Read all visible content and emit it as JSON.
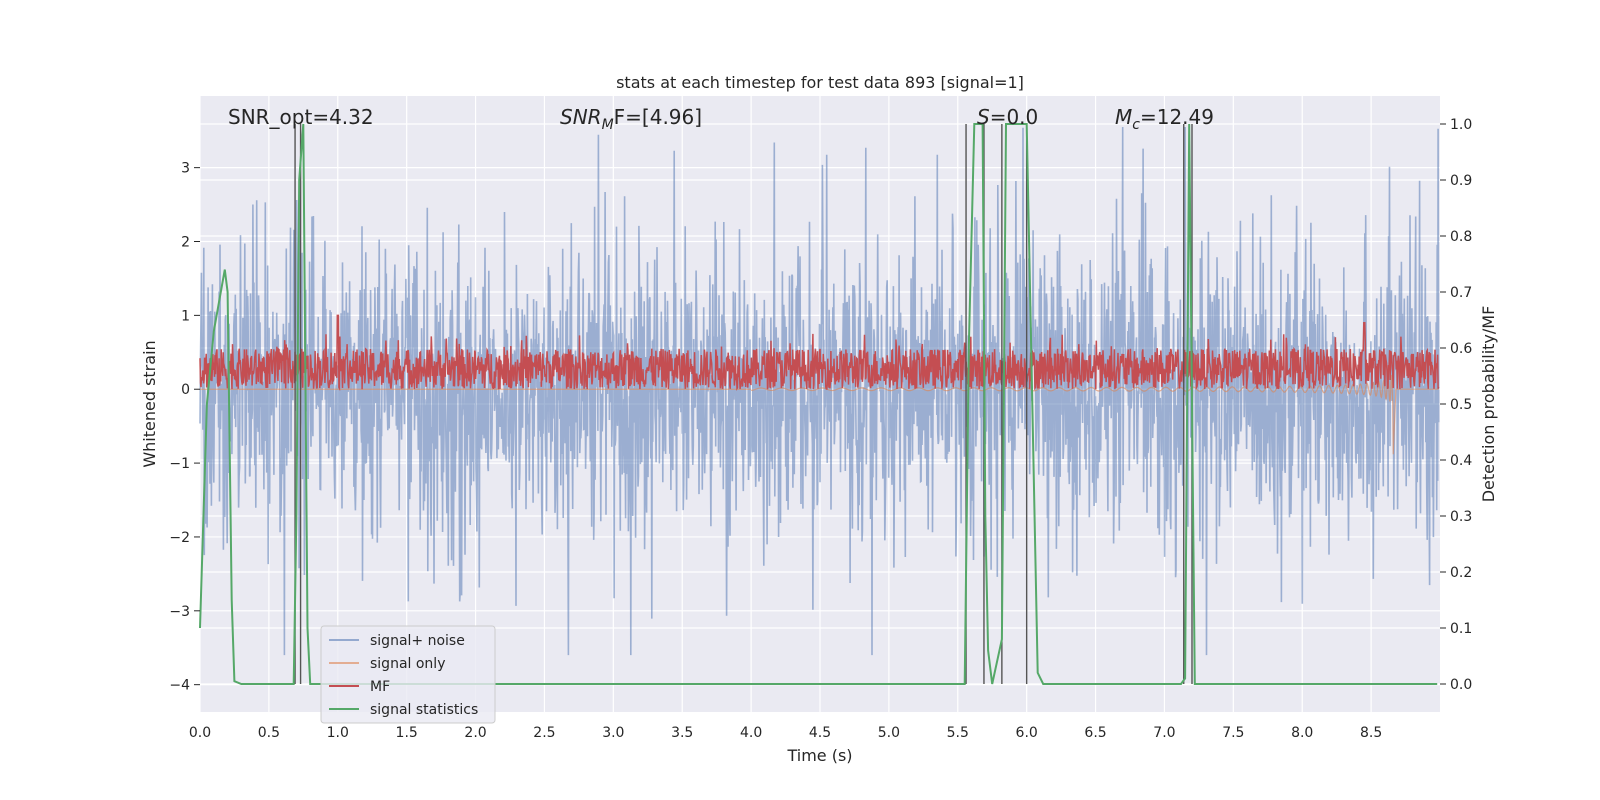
{
  "chart_data": {
    "type": "line",
    "title": "stats at each timestep for test data 893 [signal=1]",
    "xlabel": "Time (s)",
    "ylabel_left": "Whitened strain",
    "ylabel_right": "Detection probability/MF",
    "xlim": [
      0,
      9.0
    ],
    "ylim_left": [
      -4.37,
      3.97
    ],
    "ylim_right": [
      -0.05,
      1.05
    ],
    "xticks": [
      "0.0",
      "0.5",
      "1.0",
      "1.5",
      "2.0",
      "2.5",
      "3.0",
      "3.5",
      "4.0",
      "4.5",
      "5.0",
      "5.5",
      "6.0",
      "6.5",
      "7.0",
      "7.5",
      "8.0",
      "8.5"
    ],
    "xtick_values": [
      0.0,
      0.5,
      1.0,
      1.5,
      2.0,
      2.5,
      3.0,
      3.5,
      4.0,
      4.5,
      5.0,
      5.5,
      6.0,
      6.5,
      7.0,
      7.5,
      8.0,
      8.5
    ],
    "yticks_left": [
      "−4",
      "−3",
      "−2",
      "−1",
      "0",
      "1",
      "2",
      "3"
    ],
    "ytick_values_left": [
      -4,
      -3,
      -2,
      -1,
      0,
      1,
      2,
      3
    ],
    "yticks_right": [
      "0.0",
      "0.1",
      "0.2",
      "0.3",
      "0.4",
      "0.5",
      "0.6",
      "0.7",
      "0.8",
      "0.9",
      "1.0"
    ],
    "ytick_values_right": [
      0.0,
      0.1,
      0.2,
      0.3,
      0.4,
      0.5,
      0.6,
      0.7,
      0.8,
      0.9,
      1.0
    ],
    "grid": true,
    "legend_position": "bottom-left",
    "annotations": {
      "snr_opt": "SNR_opt=4.32",
      "snr_mf_sym": "SNR",
      "snr_mf_sub": "M",
      "snr_mf_rest": "F=[4.96]",
      "s_sym": "S",
      "s_rest": "=0.0",
      "mc_sym": "M",
      "mc_sub": "c",
      "mc_rest": "=12.49"
    },
    "series": [
      {
        "name": "signal+ noise",
        "color": "#4c72b0",
        "axis": "left",
        "description_values": "whitened noise, amplitude mostly within ±2, peaks to about ±3.5"
      },
      {
        "name": "signal only",
        "color": "#dd8452",
        "axis": "left",
        "chirp_end_time": 8.66,
        "chirp_min": -0.88
      },
      {
        "name": "MF",
        "color": "#c44e52",
        "axis": "left",
        "baseline_range": [
          0.0,
          0.55
        ],
        "peaks": [
          [
            1.0,
            1.0
          ],
          [
            8.45,
            0.9
          ]
        ]
      },
      {
        "name": "signal statistics",
        "color": "#55a868",
        "axis": "right",
        "x": [
          0.0,
          0.05,
          0.1,
          0.18,
          0.2,
          0.23,
          0.25,
          0.3,
          0.68,
          0.7,
          0.72,
          0.75,
          0.78,
          0.8,
          5.55,
          5.58,
          5.62,
          5.68,
          5.7,
          5.72,
          5.75,
          5.82,
          5.85,
          5.88,
          6.0,
          6.08,
          6.12,
          7.12,
          7.15,
          7.18,
          7.22,
          7.25,
          8.98
        ],
        "y": [
          0.1,
          0.5,
          0.63,
          0.74,
          0.7,
          0.15,
          0.005,
          0.0,
          0.0,
          0.3,
          0.9,
          1.0,
          0.1,
          0.0,
          0.0,
          0.6,
          1.0,
          1.0,
          0.3,
          0.06,
          0.0,
          0.08,
          1.0,
          1.0,
          1.0,
          0.02,
          0.0,
          0.0,
          0.01,
          1.0,
          0.0,
          0.0,
          0.0
        ]
      }
    ],
    "vertical_lines": [
      0.69,
      0.73,
      5.56,
      5.69,
      5.82,
      6.0,
      7.14,
      7.2
    ]
  }
}
